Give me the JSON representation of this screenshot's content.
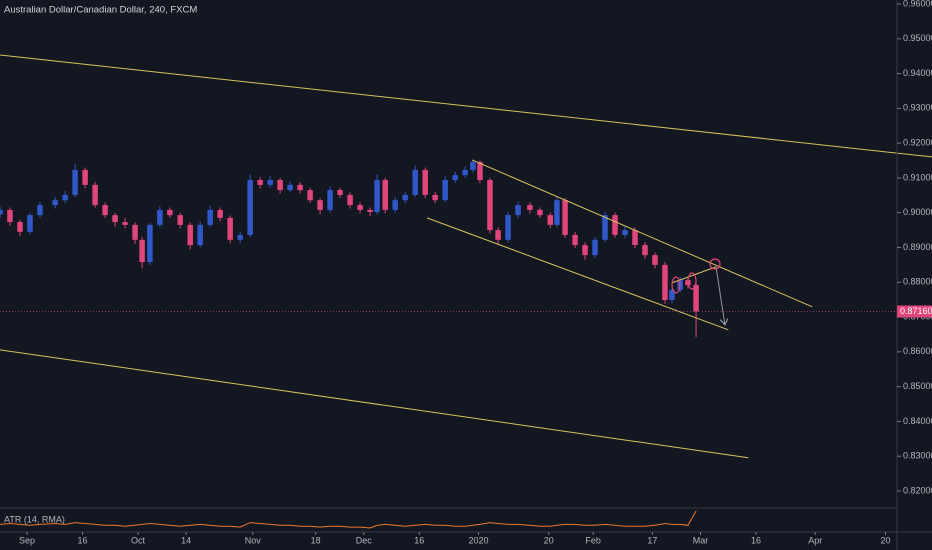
{
  "chart_data": {
    "type": "candlestick",
    "title": "Australian Dollar/Canadian Dollar, 240, FXCM",
    "up_color": "#3158c9",
    "down_color": "#e0457b",
    "x": [
      -7.3,
      -4.6,
      -1.9,
      0.8,
      3.5,
      7.6,
      10.3,
      13,
      15.7,
      18.4,
      21.1,
      23.8,
      26.5,
      29.2,
      31.1,
      33.2,
      35.9,
      38.6,
      41.4,
      44.1,
      46.8,
      49.5,
      52.2,
      54.9,
      57.6,
      60.3,
      63,
      65.7,
      68.4,
      71.1,
      73.8,
      76.5,
      79.2,
      81.9,
      84.6,
      87.3,
      90,
      92.7,
      94.6,
      96.8,
      99.5,
      102.2,
      104.9,
      107.6,
      110.3,
      113,
      115.7,
      118.4,
      120.5,
      122.4,
      125.1,
      127.3,
      130,
      132.7,
      135.9,
      138.6,
      141.4,
      143.2,
      145.4,
      148.1,
      150.8,
      153.5,
      156.2,
      158.9,
      161.6,
      164.3,
      167,
      169.7,
      172.4,
      174.3,
      176.5,
      178.6,
      180.8
    ],
    "open": [
      0.8995,
      0.9008,
      0.8973,
      0.8945,
      0.8993,
      0.9022,
      0.9036,
      0.9051,
      0.9123,
      0.908,
      0.9022,
      0.8993,
      0.8973,
      0.8965,
      0.8922,
      0.8858,
      0.8965,
      0.9008,
      0.8993,
      0.8965,
      0.8907,
      0.8965,
      0.9008,
      0.8985,
      0.8922,
      0.8936,
      0.9094,
      0.908,
      0.9094,
      0.9065,
      0.908,
      0.9065,
      0.9036,
      0.9008,
      0.9065,
      0.9051,
      0.9022,
      0.9008,
      0.9002,
      0.9094,
      0.9008,
      0.9036,
      0.9051,
      0.9123,
      0.9051,
      0.9036,
      0.9094,
      0.9108,
      0.9123,
      0.9146,
      0.9094,
      0.895,
      0.8922,
      0.8993,
      0.9022,
      0.9008,
      0.8993,
      0.8965,
      0.9036,
      0.8936,
      0.8907,
      0.8878,
      0.8922,
      0.8993,
      0.8936,
      0.895,
      0.8907,
      0.8878,
      0.885,
      0.8749,
      0.8778,
      0.8806,
      0.8792
    ],
    "high": [
      0.9018,
      0.9015,
      0.898,
      0.9,
      0.903,
      0.9045,
      0.9062,
      0.914,
      0.913,
      0.9088,
      0.903,
      0.9,
      0.8985,
      0.8972,
      0.893,
      0.897,
      0.9018,
      0.9015,
      0.9,
      0.8972,
      0.8975,
      0.902,
      0.9015,
      0.8992,
      0.8945,
      0.911,
      0.9102,
      0.9105,
      0.91,
      0.909,
      0.9088,
      0.9072,
      0.9042,
      0.9075,
      0.9072,
      0.9058,
      0.903,
      0.9015,
      0.911,
      0.91,
      0.9045,
      0.906,
      0.9135,
      0.913,
      0.906,
      0.9105,
      0.9118,
      0.9132,
      0.9152,
      0.915,
      0.91,
      0.8958,
      0.9002,
      0.9032,
      0.903,
      0.9015,
      0.9,
      0.9048,
      0.9042,
      0.8945,
      0.8915,
      0.893,
      0.9002,
      0.9,
      0.896,
      0.8958,
      0.8915,
      0.8885,
      0.8858,
      0.879,
      0.8815,
      0.8815,
      0.88
    ],
    "low": [
      0.8985,
      0.8962,
      0.8932,
      0.8938,
      0.8985,
      0.9012,
      0.9028,
      0.9045,
      0.907,
      0.9015,
      0.8985,
      0.896,
      0.8955,
      0.891,
      0.884,
      0.885,
      0.8958,
      0.8985,
      0.8955,
      0.8895,
      0.89,
      0.8958,
      0.8975,
      0.8912,
      0.8912,
      0.893,
      0.907,
      0.9072,
      0.9055,
      0.9058,
      0.9055,
      0.9028,
      0.8995,
      0.9,
      0.9042,
      0.9012,
      0.8998,
      0.899,
      0.8995,
      0.8998,
      0.9,
      0.9028,
      0.9045,
      0.9042,
      0.9028,
      0.903,
      0.9085,
      0.91,
      0.9115,
      0.9085,
      0.894,
      0.891,
      0.8915,
      0.8985,
      0.8998,
      0.8985,
      0.8955,
      0.8958,
      0.8928,
      0.8898,
      0.8865,
      0.887,
      0.8915,
      0.8928,
      0.8928,
      0.8898,
      0.8868,
      0.884,
      0.8738,
      0.874,
      0.877,
      0.8782,
      0.8642
    ],
    "close": [
      0.9008,
      0.8973,
      0.8945,
      0.8993,
      0.9022,
      0.9036,
      0.9051,
      0.9123,
      0.908,
      0.9022,
      0.8993,
      0.8973,
      0.8965,
      0.8922,
      0.8858,
      0.8965,
      0.9008,
      0.8993,
      0.8965,
      0.8907,
      0.8965,
      0.9008,
      0.8985,
      0.8922,
      0.8936,
      0.9094,
      0.908,
      0.9094,
      0.9065,
      0.908,
      0.9065,
      0.9036,
      0.9008,
      0.9065,
      0.9051,
      0.9022,
      0.9008,
      0.9002,
      0.9094,
      0.9008,
      0.9036,
      0.9051,
      0.9123,
      0.9051,
      0.9036,
      0.9094,
      0.9108,
      0.9123,
      0.9146,
      0.9094,
      0.895,
      0.8922,
      0.8993,
      0.9022,
      0.9008,
      0.8993,
      0.8965,
      0.9036,
      0.8936,
      0.8907,
      0.8878,
      0.8922,
      0.8993,
      0.8936,
      0.895,
      0.8907,
      0.8878,
      0.885,
      0.8749,
      0.8778,
      0.8806,
      0.8792,
      0.8716
    ],
    "xlim": [
      -7.3,
      235.1
    ],
    "xticks": [
      {
        "value": 0,
        "label": "Sep"
      },
      {
        "value": 15,
        "label": "16"
      },
      {
        "value": 30,
        "label": "Oct"
      },
      {
        "value": 43,
        "label": "14"
      },
      {
        "value": 61,
        "label": "Nov"
      },
      {
        "value": 78,
        "label": "18"
      },
      {
        "value": 91,
        "label": "Dec"
      },
      {
        "value": 106,
        "label": "16"
      },
      {
        "value": 122,
        "label": "2020"
      },
      {
        "value": 141,
        "label": "20"
      },
      {
        "value": 153,
        "label": "Feb"
      },
      {
        "value": 169,
        "label": "17"
      },
      {
        "value": 182,
        "label": "Mar"
      },
      {
        "value": 197,
        "label": "16"
      },
      {
        "value": 213,
        "label": "Apr"
      },
      {
        "value": 232,
        "label": "20"
      }
    ],
    "ylim": [
      0.81596,
      0.96115
    ],
    "yticks": [
      {
        "value": 0.96,
        "label": "0.96000"
      },
      {
        "value": 0.95,
        "label": "0.95000"
      },
      {
        "value": 0.94,
        "label": "0.94000"
      },
      {
        "value": 0.93,
        "label": "0.93000"
      },
      {
        "value": 0.92,
        "label": "0.92000"
      },
      {
        "value": 0.91,
        "label": "0.91000"
      },
      {
        "value": 0.9,
        "label": "0.90000"
      },
      {
        "value": 0.89,
        "label": "0.89000"
      },
      {
        "value": 0.88,
        "label": "0.88000"
      },
      {
        "value": 0.87,
        "label": "0.87000"
      },
      {
        "value": 0.86,
        "label": "0.86000"
      },
      {
        "value": 0.85,
        "label": "0.85000"
      },
      {
        "value": 0.84,
        "label": "0.84000"
      },
      {
        "value": 0.83,
        "label": "0.83000"
      },
      {
        "value": 0.82,
        "label": "0.82000"
      }
    ],
    "grid": false,
    "last_price": {
      "value": 0.8716,
      "label": "0.87160"
    },
    "trendlines": [
      {
        "color": "#d8c45a",
        "points": [
          [
            -7.3,
            0.94534
          ],
          [
            244.6,
            0.91603
          ]
        ]
      },
      {
        "color": "#d8c45a",
        "points": [
          [
            -7.3,
            0.86057
          ],
          [
            194.9,
            0.82954
          ]
        ]
      },
      {
        "color": "#d8c45a",
        "points": [
          [
            120.3,
            0.91517
          ],
          [
            212.2,
            0.87293
          ]
        ]
      },
      {
        "color": "#d8c45a",
        "points": [
          [
            108.1,
            0.89851
          ],
          [
            189.5,
            0.86632
          ]
        ]
      },
      {
        "color": "#d8c45a",
        "points": [
          [
            174.3,
            0.87983
          ],
          [
            186.2,
            0.88443
          ]
        ]
      },
      {
        "color": "#9598a1",
        "points": [
          [
            186.2,
            0.88443
          ],
          [
            188.6,
            0.86776
          ]
        ]
      }
    ],
    "indicator": {
      "name": "ATR (14, RMA)",
      "color": "#f0782d",
      "values": [
        0.0031,
        0.0032,
        0.0031,
        0.003,
        0.0031,
        0.0032,
        0.0031,
        0.0033,
        0.0032,
        0.0031,
        0.003,
        0.003,
        0.0029,
        0.003,
        0.0031,
        0.0032,
        0.0031,
        0.003,
        0.0029,
        0.003,
        0.0031,
        0.003,
        0.0029,
        0.0029,
        0.0028,
        0.0033,
        0.0032,
        0.0031,
        0.003,
        0.003,
        0.0029,
        0.0029,
        0.0028,
        0.0029,
        0.0029,
        0.0028,
        0.0028,
        0.0027,
        0.003,
        0.0031,
        0.003,
        0.0029,
        0.003,
        0.0031,
        0.003,
        0.003,
        0.0029,
        0.0029,
        0.003,
        0.0031,
        0.0033,
        0.0032,
        0.0031,
        0.0031,
        0.003,
        0.0029,
        0.0029,
        0.003,
        0.0031,
        0.0031,
        0.003,
        0.003,
        0.0031,
        0.003,
        0.0029,
        0.0029,
        0.0029,
        0.003,
        0.0032,
        0.0031,
        0.0031,
        0.003,
        0.0046
      ]
    }
  }
}
